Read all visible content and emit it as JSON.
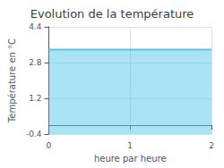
{
  "chart_data": {
    "type": "area",
    "title": "Evolution de la température",
    "xlabel": "heure par heure",
    "ylabel": "Température en °C",
    "x": [
      0,
      2
    ],
    "values": [
      3.38,
      3.38
    ],
    "color": "#55c8e8",
    "xlim": [
      0,
      2
    ],
    "xticks": [
      0,
      1,
      2
    ],
    "ylim": [
      -0.4,
      4.4
    ],
    "yticks": [
      -0.4,
      1.2,
      2.8,
      4.4
    ],
    "grid": true
  }
}
